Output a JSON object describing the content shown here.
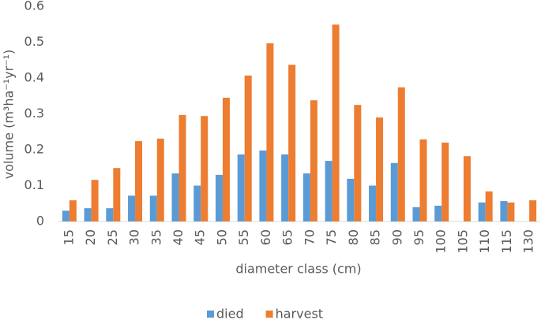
{
  "chart_data": {
    "type": "bar",
    "y_label": "volume (m³ha⁻¹yr⁻¹)",
    "x_label": "diameter class (cm)",
    "categories": [
      "15",
      "20",
      "25",
      "30",
      "35",
      "40",
      "45",
      "50",
      "55",
      "60",
      "65",
      "70",
      "75",
      "80",
      "85",
      "90",
      "95",
      "100",
      "105",
      "110",
      "115",
      "130"
    ],
    "series": [
      {
        "name": "died",
        "color": "#5b9bd5",
        "values": [
          0.03,
          0.037,
          0.037,
          0.072,
          0.072,
          0.134,
          0.1,
          0.13,
          0.187,
          0.198,
          0.187,
          0.134,
          0.169,
          0.119,
          0.1,
          0.163,
          0.04,
          0.044,
          0,
          0.053,
          0.057,
          0
        ]
      },
      {
        "name": "harvest",
        "color": "#ed7d31",
        "values": [
          0.059,
          0.116,
          0.149,
          0.224,
          0.231,
          0.297,
          0.294,
          0.345,
          0.407,
          0.497,
          0.437,
          0.338,
          0.549,
          0.325,
          0.29,
          0.374,
          0.229,
          0.22,
          0.182,
          0.084,
          0.053,
          0.059
        ]
      }
    ],
    "ylim": [
      0,
      0.6
    ],
    "yticks": [
      0,
      0.1,
      0.2,
      0.3,
      0.4,
      0.5,
      0.6
    ],
    "grid": false,
    "legend": "bottom"
  }
}
